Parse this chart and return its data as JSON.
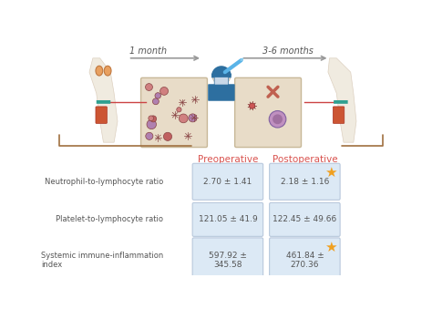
{
  "title_top_left": "1 month",
  "title_top_right": "3-6 months",
  "col_headers": [
    "Preoperative",
    "Postoperative"
  ],
  "row_labels": [
    "Neutrophil-to-lymphocyte ratio",
    "Platelet-to-lymphocyte ratio",
    "Systemic immune-inflammation\nindex"
  ],
  "preop_values": [
    "2.70 ± 1.41",
    "121.05 ± 41.9",
    "597.92 ±\n345.58"
  ],
  "postop_values": [
    "2.18 ± 1.16",
    "122.45 ± 49.66",
    "461.84 ±\n270.36"
  ],
  "star_rows": [
    0,
    2
  ],
  "box_facecolor": "#dce9f5",
  "box_edgecolor": "#b8c8dc",
  "header_color": "#d9534f",
  "bracket_color": "#a07040",
  "star_color": "#f0a020",
  "text_color": "#555555",
  "label_color": "#555555",
  "background_color": "#ffffff",
  "arrow_color": "#999999",
  "surgeon_color": "#2d6fa0",
  "skin_color": "#f0e8dc",
  "blood_box_color": "#e8dcc8",
  "cell_pre_color": "#cc6666",
  "cell_purple_color": "#b090c0",
  "x_mark_color": "#c06050"
}
